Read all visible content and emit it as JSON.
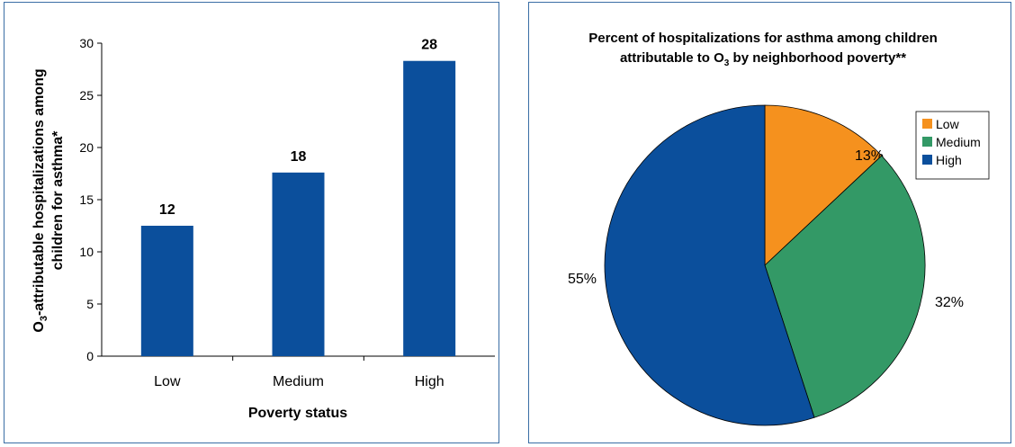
{
  "chart_data": [
    {
      "type": "bar",
      "categories": [
        "Low",
        "Medium",
        "High"
      ],
      "values": [
        12.5,
        17.6,
        28.3
      ],
      "value_labels": [
        "12",
        "18",
        "28"
      ],
      "ylabel_line1": "O",
      "ylabel_sub": "3",
      "ylabel_line1_rest": "-attributable hospitalizations among",
      "ylabel_line2": "children for asthma*",
      "xlabel": "Poverty status",
      "ylim": [
        0,
        30
      ],
      "yticks": [
        "0",
        "5",
        "10",
        "15",
        "20",
        "25",
        "30"
      ],
      "bar_color": "#0b4f9c",
      "grid": false
    },
    {
      "type": "pie",
      "title_line1": "Percent of hospitalizations for asthma among children",
      "title_line2_pre": "attributable to O",
      "title_line2_sub": "3",
      "title_line2_post": " by neighborhood poverty**",
      "slices": [
        {
          "name": "Low",
          "value": 13,
          "label": "13%",
          "color": "#f5911e"
        },
        {
          "name": "Medium",
          "value": 32,
          "label": "32%",
          "color": "#339966"
        },
        {
          "name": "High",
          "value": 55,
          "label": "55%",
          "color": "#0b4f9c"
        }
      ],
      "legend_position": "top-right"
    }
  ]
}
